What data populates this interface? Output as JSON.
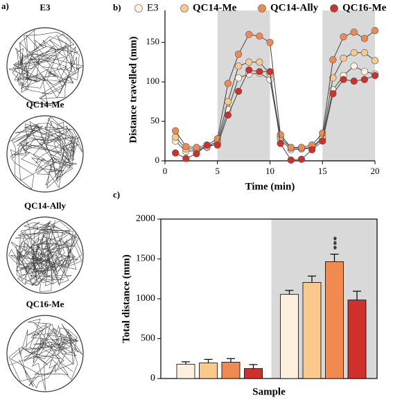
{
  "panel_a": {
    "label": "a)",
    "titles": [
      "E3",
      "QC14-Me",
      "QC14-Ally",
      "QC16-Me"
    ]
  },
  "chart_data": [
    {
      "type": "line",
      "panel_label": "b)",
      "ylabel": "Distance travelled (mm)",
      "xlabel": "Time (min)",
      "x": [
        1,
        2,
        3,
        4,
        5,
        6,
        7,
        8,
        9,
        10,
        11,
        12,
        13,
        14,
        15,
        16,
        17,
        18,
        19,
        20
      ],
      "xlim": [
        0,
        20
      ],
      "xticks": [
        0,
        5,
        10,
        15,
        20
      ],
      "ylim": [
        0,
        180
      ],
      "yticks": [
        0,
        50,
        100,
        150
      ],
      "shaded": [
        [
          5,
          10
        ],
        [
          15,
          20
        ]
      ],
      "series": [
        {
          "name": "E3",
          "color": "#fdf0dc",
          "values": [
            25,
            12,
            13,
            17,
            22,
            65,
            105,
            110,
            111,
            103,
            27,
            14,
            15,
            16,
            28,
            90,
            108,
            120,
            113,
            110
          ]
        },
        {
          "name": "QC14-Me",
          "color": "#f9c98e",
          "values": [
            30,
            15,
            15,
            18,
            25,
            75,
            120,
            125,
            125,
            110,
            30,
            16,
            16,
            17,
            30,
            105,
            130,
            137,
            137,
            127
          ]
        },
        {
          "name": "QC14-Ally",
          "color": "#f08a50",
          "values": [
            38,
            18,
            17,
            20,
            28,
            98,
            135,
            160,
            158,
            150,
            33,
            17,
            17,
            20,
            35,
            128,
            157,
            163,
            155,
            165
          ]
        },
        {
          "name": "QC16-Me",
          "color": "#d0302a",
          "values": [
            10,
            3,
            9,
            20,
            20,
            58,
            88,
            115,
            113,
            113,
            22,
            1,
            2,
            14,
            25,
            85,
            103,
            101,
            103,
            108
          ]
        }
      ]
    },
    {
      "type": "bar",
      "panel_label": "c)",
      "ylabel": "Total distance (mm)",
      "xlabel": "Sample",
      "categories": [
        null,
        null,
        null,
        null,
        null,
        null,
        null,
        null
      ],
      "values": [
        180,
        195,
        205,
        125,
        1055,
        1205,
        1465,
        985
      ],
      "errors": [
        30,
        45,
        45,
        50,
        50,
        80,
        95,
        110
      ],
      "colors": [
        "#fdf0dc",
        "#f9c98e",
        "#f08a50",
        "#d0302a",
        "#fdf0dc",
        "#f9c98e",
        "#f08a50",
        "#d0302a"
      ],
      "annotations": [
        null,
        null,
        null,
        null,
        null,
        null,
        "***",
        null
      ],
      "ylim": [
        0,
        2000
      ],
      "yticks": [
        0,
        500,
        1000,
        1500,
        2000
      ],
      "shaded": [
        4,
        7
      ]
    }
  ]
}
